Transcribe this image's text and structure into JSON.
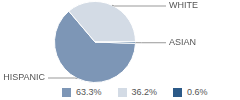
{
  "chart_data": {
    "type": "pie",
    "categories": [
      "HISPANIC",
      "WHITE",
      "ASIAN"
    ],
    "values": [
      63.3,
      36.2,
      0.6
    ],
    "value_labels": [
      "63.3%",
      "36.2%",
      "0.6%"
    ],
    "colors": [
      "#7d96b6",
      "#d3dbe5",
      "#2c5a88"
    ],
    "legend": "bottom"
  }
}
